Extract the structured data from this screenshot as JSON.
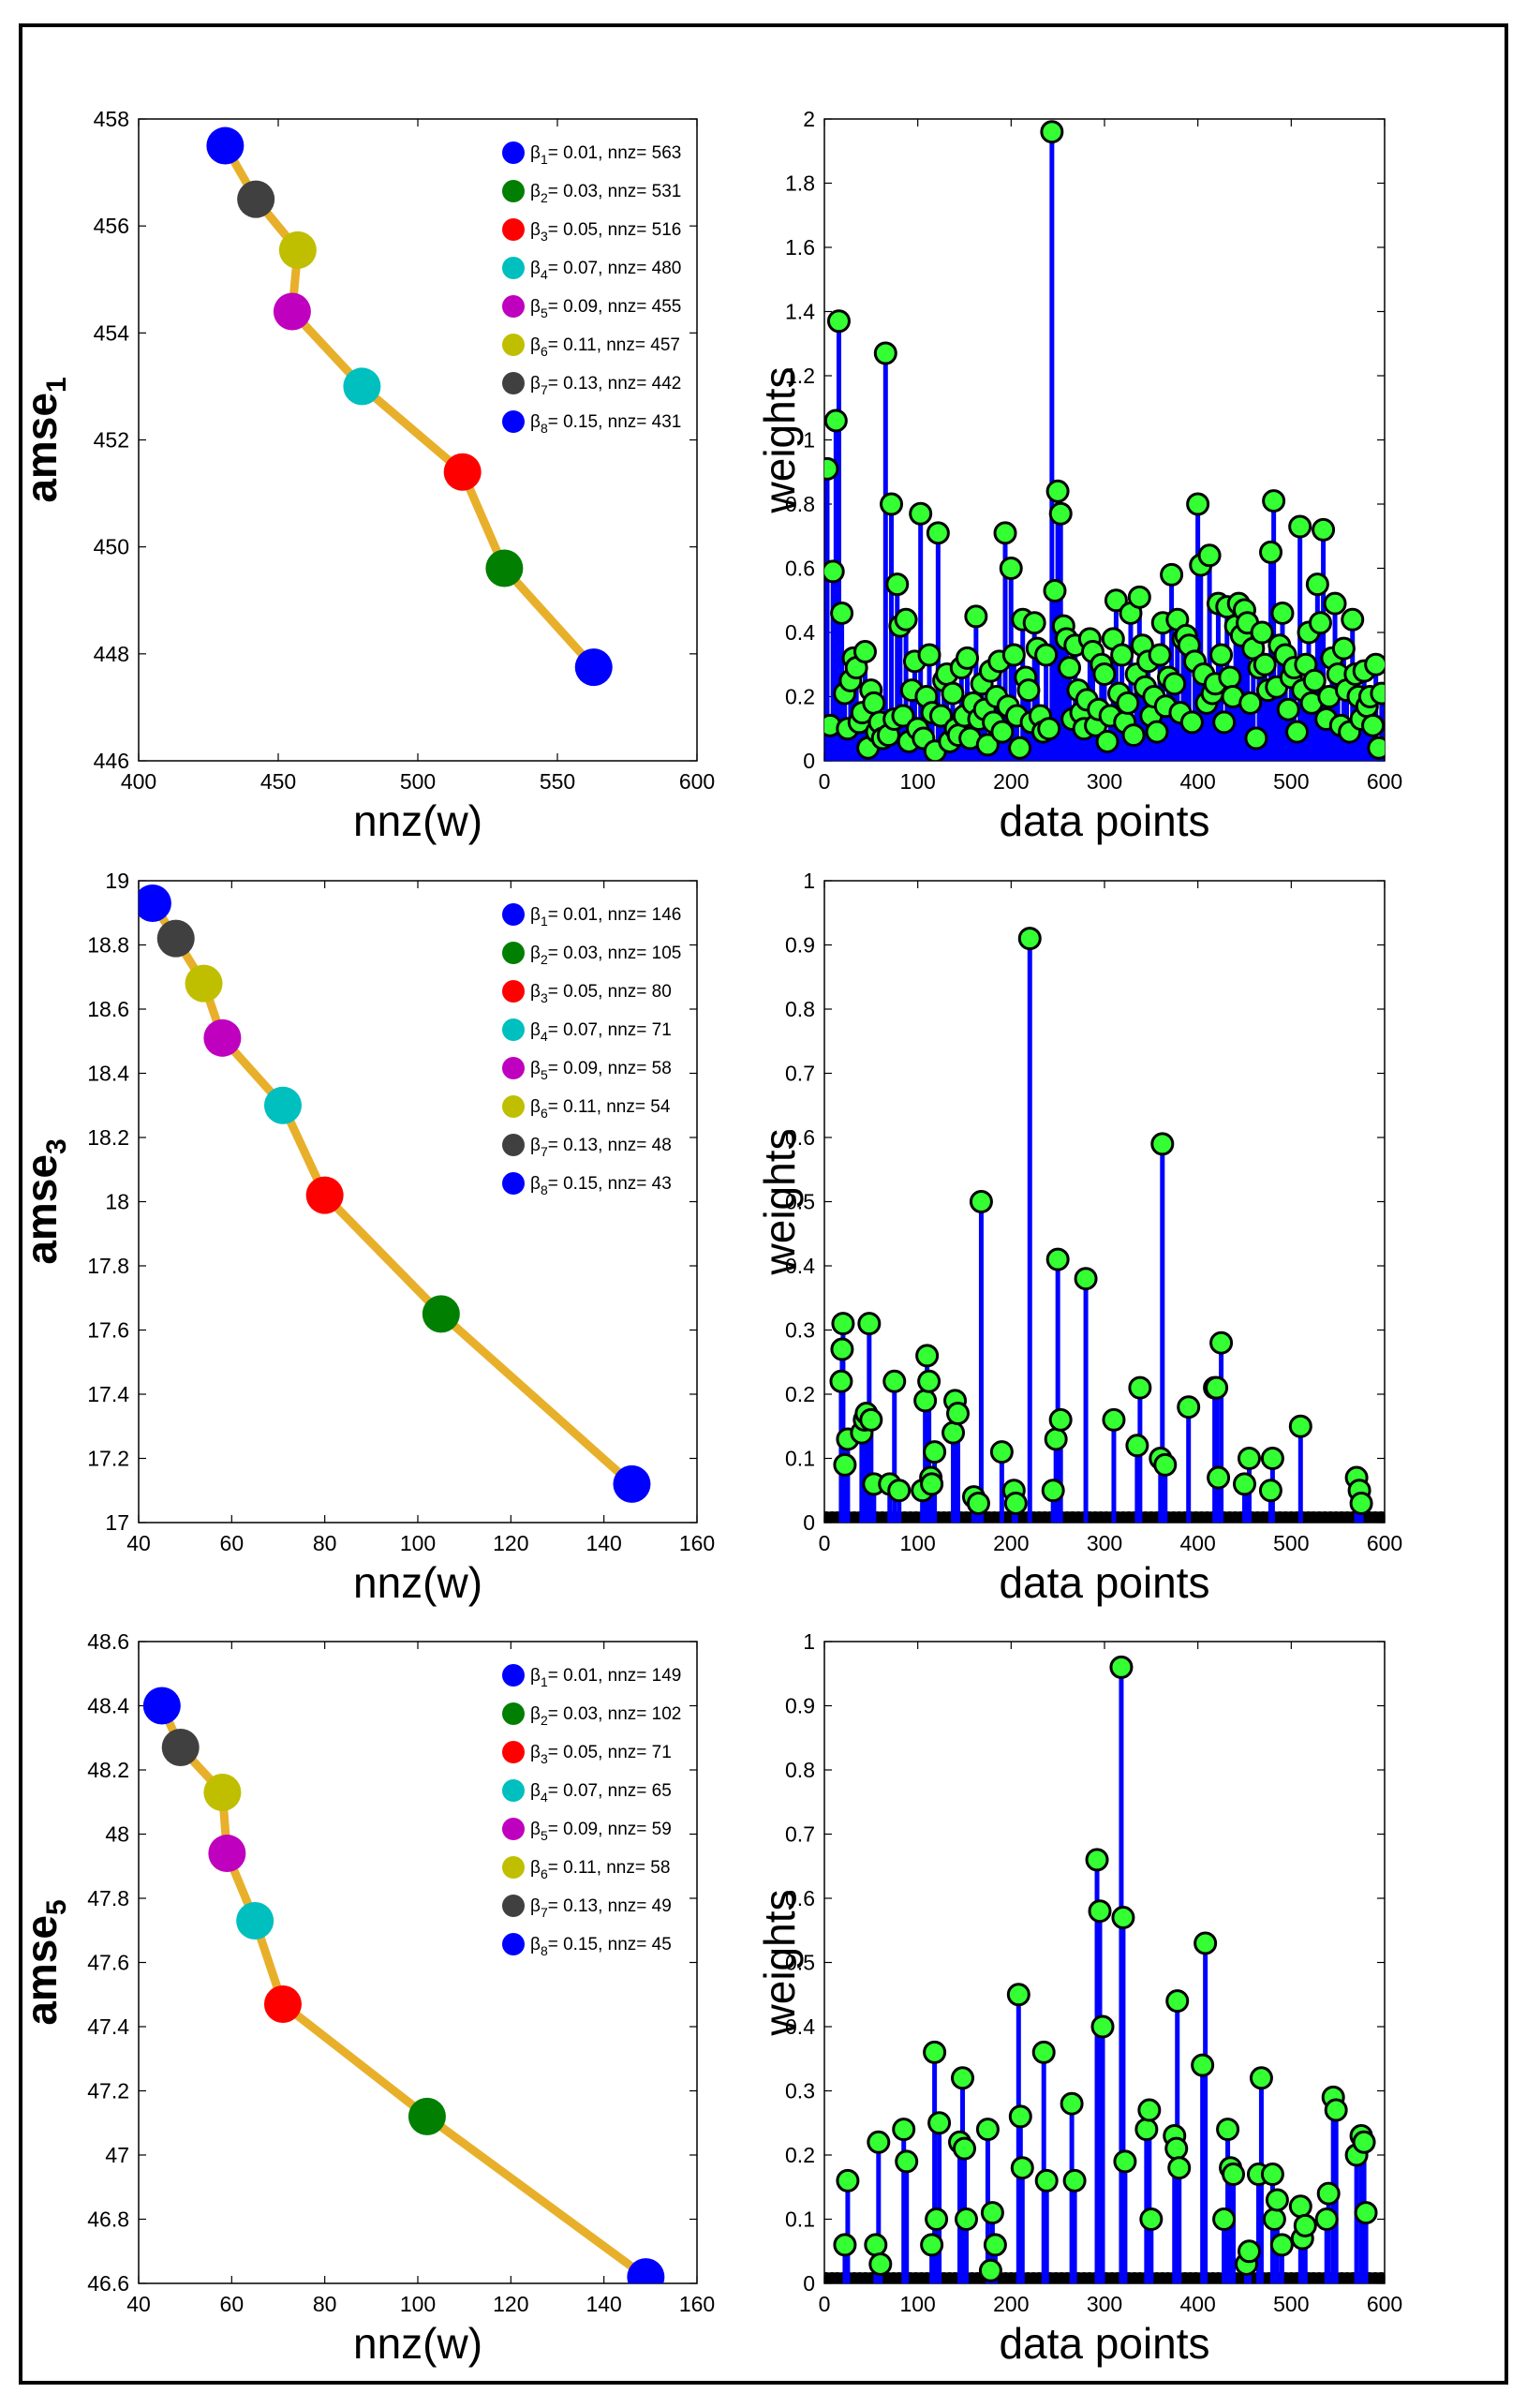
{
  "chart_data": [
    {
      "type": "line",
      "xlabel": "nnz(w)",
      "ylabel": "amse",
      "ylabel_sub": "1",
      "xlim": [
        400,
        600
      ],
      "ylim": [
        446,
        458
      ],
      "xticks": [
        400,
        450,
        500,
        550,
        600
      ],
      "yticks": [
        446,
        448,
        450,
        452,
        454,
        456,
        458
      ],
      "line_color": "#e8b02a",
      "points": [
        {
          "beta": "1",
          "beta_value": "0.01",
          "nnz": 563,
          "amse": 447.75,
          "color": "#0000ff"
        },
        {
          "beta": "2",
          "beta_value": "0.03",
          "nnz": 531,
          "amse": 449.6,
          "color": "#007f00"
        },
        {
          "beta": "3",
          "beta_value": "0.05",
          "nnz": 516,
          "amse": 451.4,
          "color": "#ff0000"
        },
        {
          "beta": "4",
          "beta_value": "0.07",
          "nnz": 480,
          "amse": 453.0,
          "color": "#00bfbf"
        },
        {
          "beta": "5",
          "beta_value": "0.09",
          "nnz": 455,
          "amse": 454.4,
          "color": "#bf00bf"
        },
        {
          "beta": "6",
          "beta_value": "0.11",
          "nnz": 457,
          "amse": 455.55,
          "color": "#bfbf00"
        },
        {
          "beta": "7",
          "beta_value": "0.13",
          "nnz": 442,
          "amse": 456.5,
          "color": "#404040"
        },
        {
          "beta": "8",
          "beta_value": "0.15",
          "nnz": 431,
          "amse": 457.5,
          "color": "#0000ff"
        }
      ]
    },
    {
      "type": "stem",
      "xlabel": "data points",
      "ylabel": "weights",
      "xlim": [
        0,
        600
      ],
      "ylim": [
        0,
        2
      ],
      "xticks": [
        0,
        100,
        200,
        300,
        400,
        500,
        600
      ],
      "yticks": [
        0,
        0.2,
        0.4,
        0.6,
        0.8,
        1,
        1.2,
        1.4,
        1.6,
        1.8,
        2
      ],
      "stem_color": "#0000ff",
      "marker_color": "#33ff33",
      "values": [
        0.91,
        0.11,
        0.59,
        1.06,
        1.37,
        0.46,
        0.21,
        0.1,
        0.25,
        0.32,
        0.29,
        0.12,
        0.15,
        0.34,
        0.04,
        0.22,
        0.18,
        0.09,
        0.12,
        0.07,
        1.27,
        0.08,
        0.8,
        0.13,
        0.55,
        0.42,
        0.14,
        0.44,
        0.06,
        0.22,
        0.31,
        0.1,
        0.77,
        0.07,
        0.2,
        0.33,
        0.15,
        0.03,
        0.71,
        0.14,
        0.25,
        0.27,
        0.06,
        0.21,
        0.1,
        0.08,
        0.29,
        0.14,
        0.32,
        0.07,
        0.18,
        0.45,
        0.13,
        0.24,
        0.16,
        0.05,
        0.28,
        0.12,
        0.2,
        0.31,
        0.09,
        0.71,
        0.17,
        0.6,
        0.33,
        0.14,
        0.04,
        0.44,
        0.26,
        0.22,
        0.12,
        0.43,
        0.35,
        0.14,
        0.09,
        0.33,
        0.1,
        1.96,
        0.53,
        0.84,
        0.77,
        0.42,
        0.38,
        0.29,
        0.13,
        0.36,
        0.22,
        0.15,
        0.1,
        0.19,
        0.38,
        0.34,
        0.11,
        0.16,
        0.3,
        0.27,
        0.06,
        0.14,
        0.38,
        0.5,
        0.21,
        0.33,
        0.12,
        0.18,
        0.46,
        0.08,
        0.27,
        0.51,
        0.36,
        0.23,
        0.31,
        0.14,
        0.2,
        0.09,
        0.33,
        0.43,
        0.17,
        0.26,
        0.58,
        0.24,
        0.44,
        0.15,
        0.38,
        0.39,
        0.36,
        0.12,
        0.31,
        0.8,
        0.61,
        0.27,
        0.18,
        0.64,
        0.21,
        0.24,
        0.49,
        0.33,
        0.12,
        0.48,
        0.26,
        0.2,
        0.42,
        0.49,
        0.39,
        0.47,
        0.43,
        0.18,
        0.35,
        0.07,
        0.29,
        0.4,
        0.3,
        0.22,
        0.65,
        0.81,
        0.23,
        0.36,
        0.46,
        0.33,
        0.16,
        0.26,
        0.29,
        0.09,
        0.73,
        0.22,
        0.3,
        0.4,
        0.18,
        0.25,
        0.55,
        0.43,
        0.72,
        0.13,
        0.2,
        0.32,
        0.49,
        0.27,
        0.11,
        0.35,
        0.22,
        0.09,
        0.44,
        0.27,
        0.2,
        0.13,
        0.28,
        0.17,
        0.2,
        0.11,
        0.3,
        0.04,
        0.21
      ],
      "zero_markers": true
    },
    {
      "type": "line",
      "xlabel": "nnz(w)",
      "ylabel": "amse",
      "ylabel_sub": "3",
      "xlim": [
        40,
        160
      ],
      "ylim": [
        17,
        19
      ],
      "xticks": [
        40,
        60,
        80,
        100,
        120,
        140,
        160
      ],
      "yticks": [
        17,
        17.2,
        17.4,
        17.6,
        17.8,
        18,
        18.2,
        18.4,
        18.6,
        18.8,
        19
      ],
      "line_color": "#e8b02a",
      "points": [
        {
          "beta": "1",
          "beta_value": "0.01",
          "nnz": 146,
          "amse": 17.12,
          "color": "#0000ff"
        },
        {
          "beta": "2",
          "beta_value": "0.03",
          "nnz": 105,
          "amse": 17.65,
          "color": "#007f00"
        },
        {
          "beta": "3",
          "beta_value": "0.05",
          "nnz": 80,
          "amse": 18.02,
          "color": "#ff0000"
        },
        {
          "beta": "4",
          "beta_value": "0.07",
          "nnz": 71,
          "amse": 18.3,
          "color": "#00bfbf"
        },
        {
          "beta": "5",
          "beta_value": "0.09",
          "nnz": 58,
          "amse": 18.51,
          "color": "#bf00bf"
        },
        {
          "beta": "6",
          "beta_value": "0.11",
          "nnz": 54,
          "amse": 18.68,
          "color": "#bfbf00"
        },
        {
          "beta": "7",
          "beta_value": "0.13",
          "nnz": 48,
          "amse": 18.82,
          "color": "#404040"
        },
        {
          "beta": "8",
          "beta_value": "0.15",
          "nnz": 43,
          "amse": 18.93,
          "color": "#0000ff"
        }
      ]
    },
    {
      "type": "stem",
      "xlabel": "data points",
      "ylabel": "weights",
      "xlim": [
        0,
        600
      ],
      "ylim": [
        0,
        1
      ],
      "xticks": [
        0,
        100,
        200,
        300,
        400,
        500,
        600
      ],
      "yticks": [
        0,
        0.1,
        0.2,
        0.3,
        0.4,
        0.5,
        0.6,
        0.7,
        0.8,
        0.9,
        1
      ],
      "stem_color": "#0000ff",
      "marker_color": "#33ff33",
      "stems": [
        [
          18,
          0.22
        ],
        [
          19,
          0.27
        ],
        [
          20,
          0.31
        ],
        [
          22,
          0.09
        ],
        [
          25,
          0.13
        ],
        [
          40,
          0.14
        ],
        [
          43,
          0.16
        ],
        [
          45,
          0.17
        ],
        [
          48,
          0.31
        ],
        [
          50,
          0.16
        ],
        [
          53,
          0.06
        ],
        [
          70,
          0.06
        ],
        [
          75,
          0.22
        ],
        [
          80,
          0.05
        ],
        [
          105,
          0.05
        ],
        [
          108,
          0.19
        ],
        [
          110,
          0.26
        ],
        [
          112,
          0.22
        ],
        [
          114,
          0.07
        ],
        [
          115,
          0.06
        ],
        [
          118,
          0.11
        ],
        [
          138,
          0.14
        ],
        [
          140,
          0.19
        ],
        [
          143,
          0.17
        ],
        [
          160,
          0.04
        ],
        [
          165,
          0.03
        ],
        [
          168,
          0.5
        ],
        [
          190,
          0.11
        ],
        [
          203,
          0.05
        ],
        [
          205,
          0.03
        ],
        [
          220,
          0.91
        ],
        [
          245,
          0.05
        ],
        [
          248,
          0.13
        ],
        [
          250,
          0.41
        ],
        [
          253,
          0.16
        ],
        [
          280,
          0.38
        ],
        [
          310,
          0.16
        ],
        [
          335,
          0.12
        ],
        [
          338,
          0.21
        ],
        [
          360,
          0.1
        ],
        [
          362,
          0.59
        ],
        [
          365,
          0.09
        ],
        [
          390,
          0.18
        ],
        [
          418,
          0.21
        ],
        [
          420,
          0.21
        ],
        [
          422,
          0.07
        ],
        [
          425,
          0.28
        ],
        [
          450,
          0.06
        ],
        [
          455,
          0.1
        ],
        [
          478,
          0.05
        ],
        [
          480,
          0.1
        ],
        [
          510,
          0.15
        ],
        [
          570,
          0.07
        ],
        [
          573,
          0.05
        ],
        [
          575,
          0.03
        ]
      ],
      "zero_markers": true
    },
    {
      "type": "line",
      "xlabel": "nnz(w)",
      "ylabel": "amse",
      "ylabel_sub": "5",
      "xlim": [
        40,
        160
      ],
      "ylim": [
        46.6,
        48.6
      ],
      "xticks": [
        40,
        60,
        80,
        100,
        120,
        140,
        160
      ],
      "yticks": [
        46.6,
        46.8,
        47,
        47.2,
        47.4,
        47.6,
        47.8,
        48,
        48.2,
        48.4,
        48.6
      ],
      "line_color": "#e8b02a",
      "points": [
        {
          "beta": "1",
          "beta_value": "0.01",
          "nnz": 149,
          "amse": 46.62,
          "color": "#0000ff"
        },
        {
          "beta": "2",
          "beta_value": "0.03",
          "nnz": 102,
          "amse": 47.12,
          "color": "#007f00"
        },
        {
          "beta": "3",
          "beta_value": "0.05",
          "nnz": 71,
          "amse": 47.47,
          "color": "#ff0000"
        },
        {
          "beta": "4",
          "beta_value": "0.07",
          "nnz": 65,
          "amse": 47.73,
          "color": "#00bfbf"
        },
        {
          "beta": "5",
          "beta_value": "0.09",
          "nnz": 59,
          "amse": 47.94,
          "color": "#bf00bf"
        },
        {
          "beta": "6",
          "beta_value": "0.11",
          "nnz": 58,
          "amse": 48.13,
          "color": "#bfbf00"
        },
        {
          "beta": "7",
          "beta_value": "0.13",
          "nnz": 49,
          "amse": 48.27,
          "color": "#404040"
        },
        {
          "beta": "8",
          "beta_value": "0.15",
          "nnz": 45,
          "amse": 48.4,
          "color": "#0000ff"
        }
      ]
    },
    {
      "type": "stem",
      "xlabel": "data points",
      "ylabel": "weights",
      "xlim": [
        0,
        600
      ],
      "ylim": [
        0,
        1
      ],
      "xticks": [
        0,
        100,
        200,
        300,
        400,
        500,
        600
      ],
      "yticks": [
        0,
        0.1,
        0.2,
        0.3,
        0.4,
        0.5,
        0.6,
        0.7,
        0.8,
        0.9,
        1
      ],
      "stem_color": "#0000ff",
      "marker_color": "#33ff33",
      "stems": [
        [
          22,
          0.06
        ],
        [
          25,
          0.16
        ],
        [
          55,
          0.06
        ],
        [
          58,
          0.22
        ],
        [
          60,
          0.03
        ],
        [
          85,
          0.24
        ],
        [
          88,
          0.19
        ],
        [
          115,
          0.06
        ],
        [
          118,
          0.36
        ],
        [
          120,
          0.1
        ],
        [
          123,
          0.25
        ],
        [
          145,
          0.22
        ],
        [
          148,
          0.32
        ],
        [
          150,
          0.21
        ],
        [
          152,
          0.1
        ],
        [
          175,
          0.24
        ],
        [
          178,
          0.02
        ],
        [
          180,
          0.11
        ],
        [
          183,
          0.06
        ],
        [
          208,
          0.45
        ],
        [
          210,
          0.26
        ],
        [
          212,
          0.18
        ],
        [
          235,
          0.36
        ],
        [
          238,
          0.16
        ],
        [
          265,
          0.28
        ],
        [
          268,
          0.16
        ],
        [
          292,
          0.66
        ],
        [
          295,
          0.58
        ],
        [
          298,
          0.4
        ],
        [
          318,
          0.96
        ],
        [
          320,
          0.57
        ],
        [
          322,
          0.19
        ],
        [
          345,
          0.24
        ],
        [
          348,
          0.27
        ],
        [
          350,
          0.1
        ],
        [
          375,
          0.23
        ],
        [
          377,
          0.21
        ],
        [
          378,
          0.44
        ],
        [
          380,
          0.18
        ],
        [
          405,
          0.34
        ],
        [
          408,
          0.53
        ],
        [
          428,
          0.1
        ],
        [
          432,
          0.24
        ],
        [
          435,
          0.18
        ],
        [
          438,
          0.17
        ],
        [
          452,
          0.03
        ],
        [
          455,
          0.05
        ],
        [
          465,
          0.17
        ],
        [
          468,
          0.32
        ],
        [
          480,
          0.17
        ],
        [
          482,
          0.1
        ],
        [
          485,
          0.13
        ],
        [
          490,
          0.06
        ],
        [
          510,
          0.12
        ],
        [
          512,
          0.07
        ],
        [
          515,
          0.09
        ],
        [
          538,
          0.1
        ],
        [
          540,
          0.14
        ],
        [
          545,
          0.29
        ],
        [
          548,
          0.27
        ],
        [
          570,
          0.2
        ],
        [
          575,
          0.23
        ],
        [
          578,
          0.22
        ],
        [
          580,
          0.11
        ]
      ],
      "zero_markers": true
    }
  ]
}
